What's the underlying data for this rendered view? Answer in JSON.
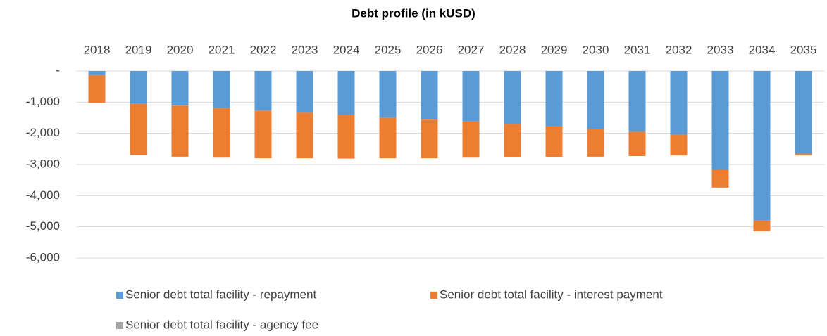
{
  "chart_data": {
    "type": "bar",
    "stacked": true,
    "title": "Debt profile (in kUSD)",
    "categories": [
      "2018",
      "2019",
      "2020",
      "2021",
      "2022",
      "2023",
      "2024",
      "2025",
      "2026",
      "2027",
      "2028",
      "2029",
      "2030",
      "2031",
      "2032",
      "2033",
      "2034",
      "2035"
    ],
    "series": [
      {
        "name": "Senior debt total facility - repayment",
        "color": "#5b9bd5",
        "values": [
          -130,
          -1040,
          -1110,
          -1190,
          -1270,
          -1340,
          -1410,
          -1490,
          -1560,
          -1620,
          -1700,
          -1780,
          -1860,
          -1950,
          -2040,
          -3180,
          -4800,
          -2650
        ]
      },
      {
        "name": "Senior debt total facility - interest payment",
        "color": "#ed7d31",
        "values": [
          -890,
          -1650,
          -1640,
          -1590,
          -1530,
          -1460,
          -1400,
          -1310,
          -1240,
          -1160,
          -1070,
          -980,
          -890,
          -780,
          -670,
          -560,
          -340,
          -60
        ]
      },
      {
        "name": "Senior debt total facility - agency fee",
        "color": "#a5a5a5",
        "values": [
          0,
          0,
          0,
          0,
          0,
          0,
          0,
          0,
          0,
          0,
          0,
          0,
          0,
          0,
          0,
          0,
          0,
          0
        ]
      }
    ],
    "ylim": [
      -6000,
      0
    ],
    "yticks": [
      {
        "value": 0,
        "label": "-"
      },
      {
        "value": -1000,
        "label": "-1,000"
      },
      {
        "value": -2000,
        "label": "-2,000"
      },
      {
        "value": -3000,
        "label": "-3,000"
      },
      {
        "value": -4000,
        "label": "-4,000"
      },
      {
        "value": -5000,
        "label": "-5,000"
      },
      {
        "value": -6000,
        "label": "-6,000"
      }
    ],
    "grid": true
  }
}
